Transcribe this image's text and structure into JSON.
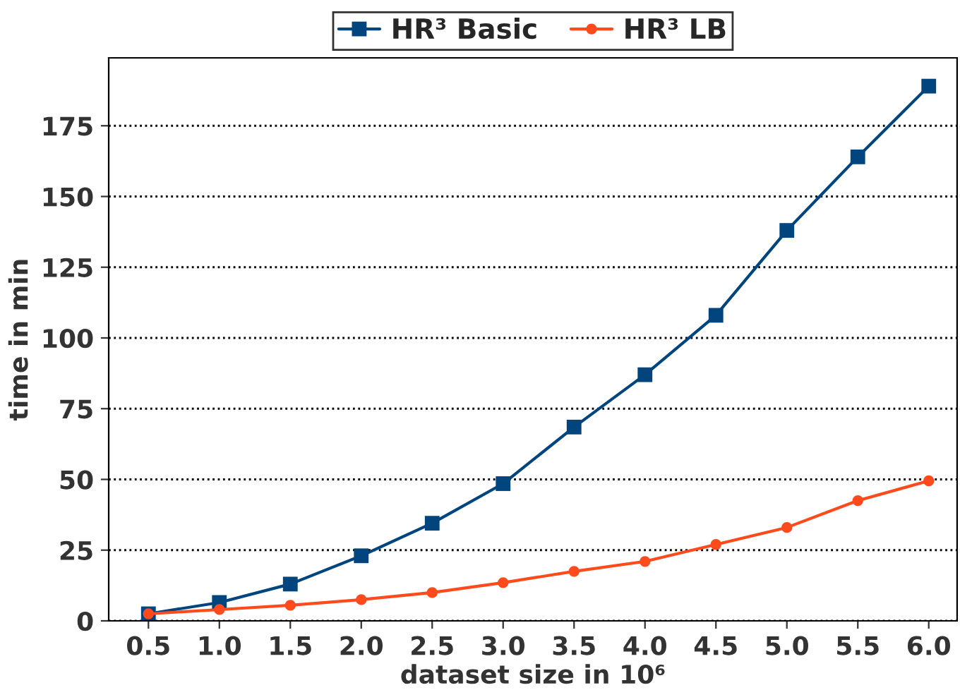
{
  "chart_data": {
    "type": "line",
    "xlabel": "dataset size in 10⁶",
    "ylabel": "time in min",
    "x": [
      0.5,
      1.0,
      1.5,
      2.0,
      2.5,
      3.0,
      3.5,
      4.0,
      4.5,
      5.0,
      5.5,
      6.0
    ],
    "series": [
      {
        "name": "HR³ Basic",
        "color": "#00457e",
        "marker": "square",
        "values": [
          2.5,
          6.5,
          13,
          23,
          34.5,
          48.5,
          68.5,
          87,
          108,
          138,
          164,
          189
        ]
      },
      {
        "name": "HR³ LB",
        "color": "#ff4a1c",
        "marker": "circle",
        "values": [
          2.5,
          4,
          5.5,
          7.5,
          10,
          13.5,
          17.5,
          21,
          27,
          33,
          42.5,
          49.5
        ]
      }
    ],
    "xlim": [
      0.22,
      6.2
    ],
    "ylim": [
      0,
      199
    ],
    "xticks": [
      {
        "value": 0.5,
        "label": "0.5"
      },
      {
        "value": 1.0,
        "label": "1.0"
      },
      {
        "value": 1.5,
        "label": "1.5"
      },
      {
        "value": 2.0,
        "label": "2.0"
      },
      {
        "value": 2.5,
        "label": "2.5"
      },
      {
        "value": 3.0,
        "label": "3.0"
      },
      {
        "value": 3.5,
        "label": "3.5"
      },
      {
        "value": 4.0,
        "label": "4.0"
      },
      {
        "value": 4.5,
        "label": "4.5"
      },
      {
        "value": 5.0,
        "label": "5.0"
      },
      {
        "value": 5.5,
        "label": "5.5"
      },
      {
        "value": 6.0,
        "label": "6.0"
      }
    ],
    "yticks": [
      0,
      25,
      50,
      75,
      100,
      125,
      150,
      175
    ],
    "grid": "y",
    "legend": "top",
    "line_style": "solid"
  }
}
